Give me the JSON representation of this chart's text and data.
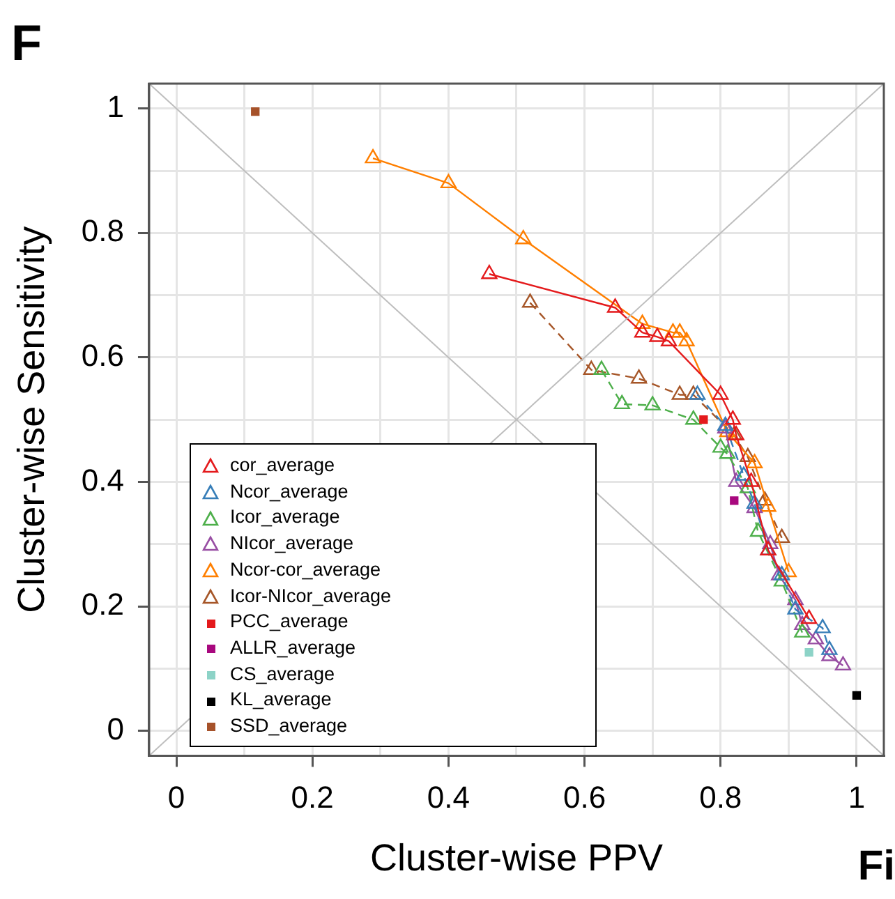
{
  "chart_data": {
    "type": "line",
    "xlabel": "Cluster-wise PPV",
    "ylabel": "Cluster-wise Sensitivity",
    "annotations": [
      "F",
      "Fi"
    ],
    "xlim": [
      -0.04,
      1.04
    ],
    "ylim": [
      -0.04,
      1.04
    ],
    "xticks": [
      0,
      {
        "value": 0.1,
        "label": null
      },
      0.2,
      {
        "value": 0.3,
        "label": null
      },
      0.4,
      {
        "value": 0.5,
        "label": null
      },
      0.6,
      {
        "value": 0.7,
        "label": null
      },
      0.8,
      {
        "value": 0.9,
        "label": null
      },
      1
    ],
    "yticks": [
      0,
      {
        "value": 0.1,
        "label": null
      },
      0.2,
      {
        "value": 0.3,
        "label": null
      },
      0.4,
      {
        "value": 0.5,
        "label": null
      },
      0.6,
      {
        "value": 0.7,
        "label": null
      },
      0.8,
      {
        "value": 0.9,
        "label": null
      },
      1
    ],
    "grid": true,
    "legend": "bottom left",
    "series": [
      {
        "color": "#bebebe",
        "marker": "none",
        "line_style": "solid",
        "x": [
          -0.04,
          1.04
        ],
        "values": [
          -0.04,
          1.04
        ]
      },
      {
        "color": "#bebebe",
        "marker": "none",
        "line_style": "solid",
        "x": [
          -0.04,
          1.04
        ],
        "values": [
          1.04,
          -0.04
        ]
      },
      {
        "name": "cor_average",
        "color": "#e41a1c",
        "marker": "triangle",
        "line_style": "solid",
        "x": [
          0.46,
          0.645,
          0.685,
          0.707,
          0.724,
          0.8,
          0.818,
          0.823,
          0.845,
          0.87,
          0.93
        ],
        "values": [
          0.734,
          0.68,
          0.64,
          0.633,
          0.626,
          0.54,
          0.5,
          0.475,
          0.4,
          0.29,
          0.18
        ]
      },
      {
        "name": "Ncor_average",
        "color": "#377eb8",
        "marker": "triangle",
        "line_style": "dashed",
        "x": [
          0.766,
          0.807,
          0.834,
          0.85,
          0.87,
          0.89,
          0.91,
          0.95,
          0.96
        ],
        "values": [
          0.54,
          0.49,
          0.41,
          0.365,
          0.29,
          0.25,
          0.195,
          0.165,
          0.13
        ]
      },
      {
        "name": "Icor_average",
        "color": "#4daf4a",
        "marker": "triangle",
        "line_style": "dashed",
        "x": [
          0.625,
          0.655,
          0.7,
          0.76,
          0.8,
          0.81,
          0.84,
          0.855,
          0.89,
          0.92
        ],
        "values": [
          0.58,
          0.525,
          0.523,
          0.5,
          0.455,
          0.445,
          0.39,
          0.32,
          0.24,
          0.158
        ]
      },
      {
        "name": "NIcor_average",
        "color": "#984ea3",
        "marker": "triangle",
        "line_style": "solid",
        "x": [
          0.807,
          0.823,
          0.85,
          0.873,
          0.886,
          0.91,
          0.92,
          0.94,
          0.96,
          0.98
        ],
        "values": [
          0.486,
          0.4,
          0.358,
          0.3,
          0.25,
          0.21,
          0.17,
          0.147,
          0.12,
          0.105
        ]
      },
      {
        "name": "Ncor-cor_average",
        "color": "#ff7f00",
        "marker": "triangle",
        "line_style": "solid",
        "x": [
          0.289,
          0.4,
          0.51,
          0.685,
          0.73,
          0.74,
          0.75,
          0.81,
          0.85,
          0.87,
          0.9
        ],
        "values": [
          0.92,
          0.88,
          0.79,
          0.654,
          0.64,
          0.64,
          0.626,
          0.48,
          0.43,
          0.36,
          0.255
        ]
      },
      {
        "name": "Icor-NIcor_average",
        "color": "#a65628",
        "marker": "triangle",
        "line_style": "dashed",
        "x": [
          0.52,
          0.61,
          0.68,
          0.74,
          0.76,
          0.82,
          0.84,
          0.865,
          0.89
        ],
        "values": [
          0.688,
          0.58,
          0.566,
          0.54,
          0.54,
          0.475,
          0.44,
          0.37,
          0.31
        ]
      },
      {
        "name": "PCC_average",
        "type": "scatter",
        "color": "#e41a1c",
        "marker": "square",
        "x": [
          0.775
        ],
        "values": [
          0.5
        ]
      },
      {
        "name": "ALLR_average",
        "type": "scatter",
        "color": "#a8087e",
        "marker": "square",
        "x": [
          0.82
        ],
        "values": [
          0.37
        ]
      },
      {
        "name": "CS_average",
        "type": "scatter",
        "color": "#8dd3c7",
        "marker": "square",
        "x": [
          0.93
        ],
        "values": [
          0.126
        ]
      },
      {
        "name": "KL_average",
        "type": "scatter",
        "color": "#000000",
        "marker": "square",
        "x": [
          1.0
        ],
        "values": [
          0.057
        ]
      },
      {
        "name": "SSD_average",
        "type": "scatter",
        "color": "#a6522a",
        "marker": "square",
        "x": [
          0.116
        ],
        "values": [
          0.995
        ]
      }
    ]
  }
}
